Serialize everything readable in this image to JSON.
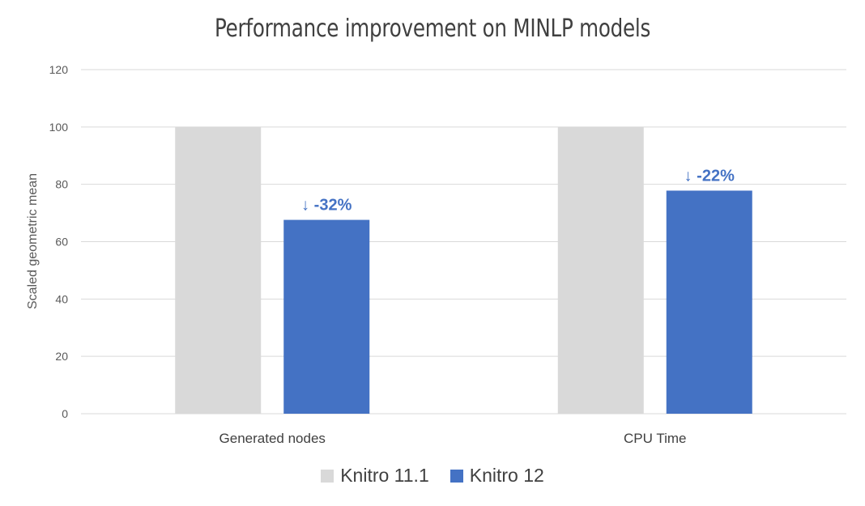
{
  "chart_data": {
    "type": "bar",
    "title": "Performance improvement on MINLP models",
    "xlabel": "",
    "ylabel": "Scaled geometric mean",
    "categories": [
      "Generated nodes",
      "CPU Time"
    ],
    "series": [
      {
        "name": "Knitro 11.1",
        "color": "#d9d9d9",
        "values": [
          100,
          100
        ]
      },
      {
        "name": "Knitro 12",
        "color": "#4472c4",
        "values": [
          67.6,
          77.8
        ]
      }
    ],
    "data_labels": {
      "series": "Knitro 12",
      "labels": [
        "↓ -32%",
        "↓ -22%"
      ],
      "color": "#4472c4"
    },
    "ylim": [
      0,
      120
    ],
    "yticks": [
      0,
      20,
      40,
      60,
      80,
      100,
      120
    ],
    "grid": true,
    "legend_position": "bottom"
  }
}
